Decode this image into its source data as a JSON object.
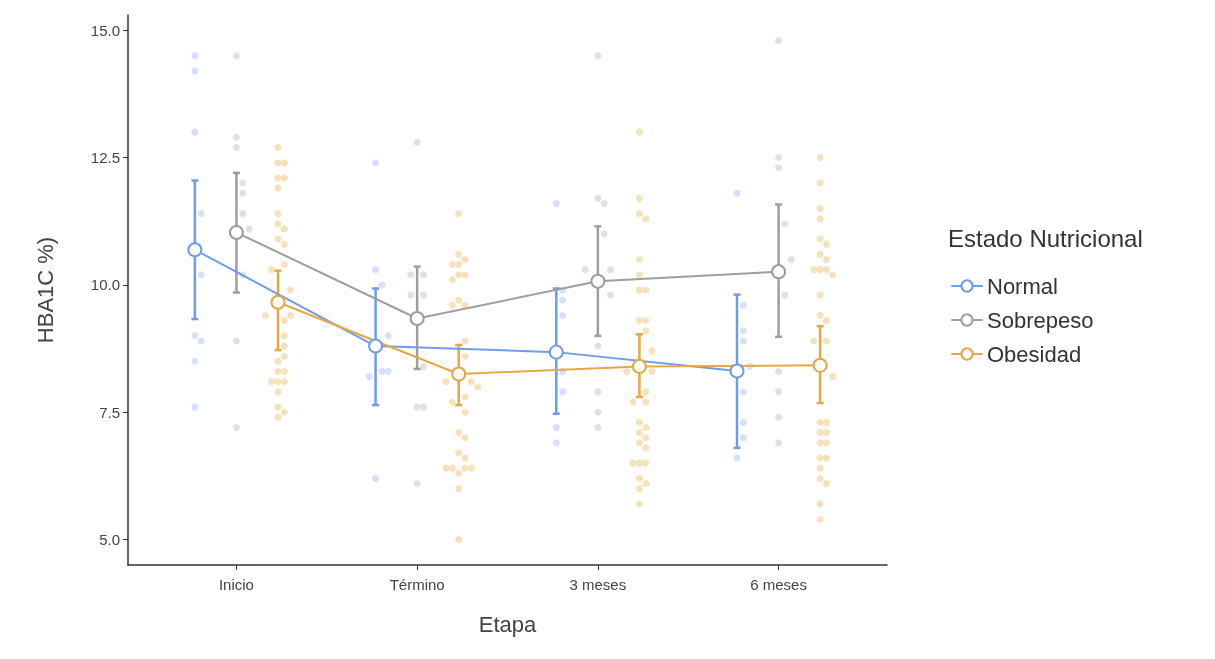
{
  "chart_data": {
    "type": "line",
    "xlabel": "Etapa",
    "ylabel": "HBA1C %)",
    "legend_title": "Estado Nutricional",
    "legend": "right",
    "grid": false,
    "marker": "circle",
    "line_style": "solid",
    "categories": [
      "Inicio",
      "Término",
      "3 meses",
      "6 meses"
    ],
    "ylim": [
      4.5,
      15.3
    ],
    "yticks": [
      {
        "value": 5,
        "label": "5.0"
      },
      7.5,
      {
        "value": 10,
        "label": "10.0"
      },
      12.5,
      {
        "value": 15,
        "label": "15.0"
      }
    ],
    "series": [
      {
        "type": "scatter",
        "color": "#c9d9f6",
        "x": [
          "Inicio",
          "Inicio",
          "Inicio",
          "Inicio",
          "Inicio",
          "Inicio",
          "Inicio",
          "Inicio",
          "Inicio",
          "Término",
          "Término",
          "Término",
          "Término",
          "Término",
          "Término",
          "Término",
          "Término",
          "3 meses",
          "3 meses",
          "3 meses",
          "3 meses",
          "3 meses",
          "3 meses",
          "3 meses",
          "3 meses",
          "6 meses",
          "6 meses",
          "6 meses",
          "6 meses",
          "6 meses",
          "6 meses",
          "6 meses",
          "6 meses",
          "6 meses"
        ],
        "values": [
          13.0,
          14.2,
          14.5,
          11.4,
          10.2,
          9.0,
          8.9,
          8.5,
          7.6,
          12.4,
          10.3,
          10.0,
          9.0,
          8.3,
          8.2,
          8.3,
          6.2,
          11.6,
          9.9,
          9.7,
          9.4,
          8.3,
          7.9,
          7.2,
          6.9,
          11.8,
          9.6,
          9.1,
          8.9,
          8.4,
          7.9,
          7.3,
          7.0,
          6.6
        ]
      },
      {
        "type": "scatter",
        "color": "#d9d9d9",
        "x": [
          "Inicio",
          "Inicio",
          "Inicio",
          "Inicio",
          "Inicio",
          "Inicio",
          "Inicio",
          "Inicio",
          "Inicio",
          "Inicio",
          "Término",
          "Término",
          "Término",
          "Término",
          "Término",
          "Término",
          "Término",
          "Término",
          "Término",
          "3 meses",
          "3 meses",
          "3 meses",
          "3 meses",
          "3 meses",
          "3 meses",
          "3 meses",
          "3 meses",
          "3 meses",
          "3 meses",
          "3 meses",
          "6 meses",
          "6 meses",
          "6 meses",
          "6 meses",
          "6 meses",
          "6 meses",
          "6 meses",
          "6 meses",
          "6 meses",
          "6 meses"
        ],
        "values": [
          14.5,
          12.9,
          12.7,
          12.0,
          11.8,
          11.4,
          11.1,
          10.2,
          8.9,
          7.2,
          12.8,
          10.2,
          10.2,
          9.8,
          9.8,
          8.4,
          7.6,
          7.6,
          6.1,
          14.5,
          11.7,
          11.6,
          11.0,
          10.3,
          10.3,
          9.8,
          8.8,
          7.9,
          7.5,
          7.2,
          14.8,
          12.5,
          12.3,
          11.2,
          10.5,
          9.8,
          8.3,
          7.9,
          7.4,
          6.9
        ]
      },
      {
        "type": "scatter",
        "color": "#f3dba9",
        "x": [
          "Inicio",
          "Inicio",
          "Inicio",
          "Inicio",
          "Inicio",
          "Inicio",
          "Inicio",
          "Inicio",
          "Inicio",
          "Inicio",
          "Inicio",
          "Inicio",
          "Inicio",
          "Inicio",
          "Inicio",
          "Inicio",
          "Inicio",
          "Inicio",
          "Inicio",
          "Inicio",
          "Inicio",
          "Inicio",
          "Inicio",
          "Inicio",
          "Inicio",
          "Inicio",
          "Inicio",
          "Inicio",
          "Inicio",
          "Inicio",
          "Término",
          "Término",
          "Término",
          "Término",
          "Término",
          "Término",
          "Término",
          "Término",
          "Término",
          "Término",
          "Término",
          "Término",
          "Término",
          "Término",
          "Término",
          "Término",
          "Término",
          "Término",
          "Término",
          "Término",
          "Término",
          "Término",
          "Término",
          "Término",
          "Término",
          "Término",
          "Término",
          "Término",
          "Término",
          "Término",
          "3 meses",
          "3 meses",
          "3 meses",
          "3 meses",
          "3 meses",
          "3 meses",
          "3 meses",
          "3 meses",
          "3 meses",
          "3 meses",
          "3 meses",
          "3 meses",
          "3 meses",
          "3 meses",
          "3 meses",
          "3 meses",
          "3 meses",
          "3 meses",
          "3 meses",
          "3 meses",
          "3 meses",
          "3 meses",
          "3 meses",
          "3 meses",
          "3 meses",
          "3 meses",
          "3 meses",
          "3 meses",
          "3 meses",
          "3 meses",
          "6 meses",
          "6 meses",
          "6 meses",
          "6 meses",
          "6 meses",
          "6 meses",
          "6 meses",
          "6 meses",
          "6 meses",
          "6 meses",
          "6 meses",
          "6 meses",
          "6 meses",
          "6 meses",
          "6 meses",
          "6 meses",
          "6 meses",
          "6 meses",
          "6 meses",
          "6 meses",
          "6 meses",
          "6 meses",
          "6 meses",
          "6 meses",
          "6 meses",
          "6 meses",
          "6 meses",
          "6 meses",
          "6 meses",
          "6 meses",
          "6 meses"
        ],
        "values": [
          12.7,
          12.4,
          12.4,
          12.1,
          12.1,
          11.9,
          11.4,
          11.2,
          11.1,
          10.9,
          10.8,
          10.4,
          10.3,
          9.9,
          9.4,
          9.4,
          9.3,
          9.0,
          8.8,
          8.6,
          8.5,
          8.3,
          8.3,
          8.1,
          8.1,
          8.1,
          7.9,
          7.6,
          7.4,
          7.5,
          11.4,
          10.6,
          10.5,
          10.4,
          10.4,
          10.2,
          10.2,
          10.1,
          9.7,
          9.6,
          9.6,
          8.9,
          8.6,
          8.1,
          8.1,
          8.0,
          7.8,
          7.7,
          7.5,
          7.1,
          7.0,
          6.7,
          6.6,
          6.3,
          6.4,
          6.4,
          6.4,
          6.4,
          6.0,
          5.0,
          13.0,
          11.7,
          11.4,
          11.3,
          10.5,
          10.2,
          9.9,
          9.9,
          9.3,
          9.3,
          9.1,
          8.7,
          8.3,
          8.3,
          7.9,
          7.7,
          7.7,
          7.3,
          7.1,
          7.2,
          7.0,
          6.9,
          6.8,
          6.5,
          6.5,
          6.5,
          6.2,
          6.1,
          6.0,
          5.7,
          12.5,
          12.0,
          11.5,
          11.3,
          10.9,
          10.8,
          10.6,
          10.5,
          10.3,
          10.3,
          10.3,
          10.2,
          9.8,
          9.4,
          9.3,
          8.9,
          8.9,
          8.2,
          7.3,
          7.3,
          7.1,
          7.1,
          6.9,
          6.9,
          6.6,
          6.6,
          6.4,
          6.2,
          6.1,
          5.7,
          5.4
        ]
      },
      {
        "name": "Normal",
        "color": "#6f9ce8",
        "values": [
          10.69,
          8.8,
          8.68,
          8.31
        ],
        "errors": [
          [
            9.33,
            12.05
          ],
          [
            7.64,
            9.93
          ],
          [
            7.47,
            9.93
          ],
          [
            6.8,
            9.81
          ]
        ]
      },
      {
        "name": "Sobrepeso",
        "color": "#9e9e9e",
        "values": [
          11.03,
          9.34,
          10.07,
          10.26
        ],
        "errors": [
          [
            9.85,
            12.2
          ],
          [
            8.35,
            10.36
          ],
          [
            9.0,
            11.15
          ],
          [
            8.98,
            11.58
          ]
        ]
      },
      {
        "name": "Obesidad",
        "color": "#e6a843",
        "values": [
          9.66,
          8.25,
          8.4,
          8.42
        ],
        "errors": [
          [
            8.72,
            10.28
          ],
          [
            7.64,
            8.82
          ],
          [
            7.8,
            9.03
          ],
          [
            7.68,
            9.19
          ]
        ]
      }
    ]
  }
}
